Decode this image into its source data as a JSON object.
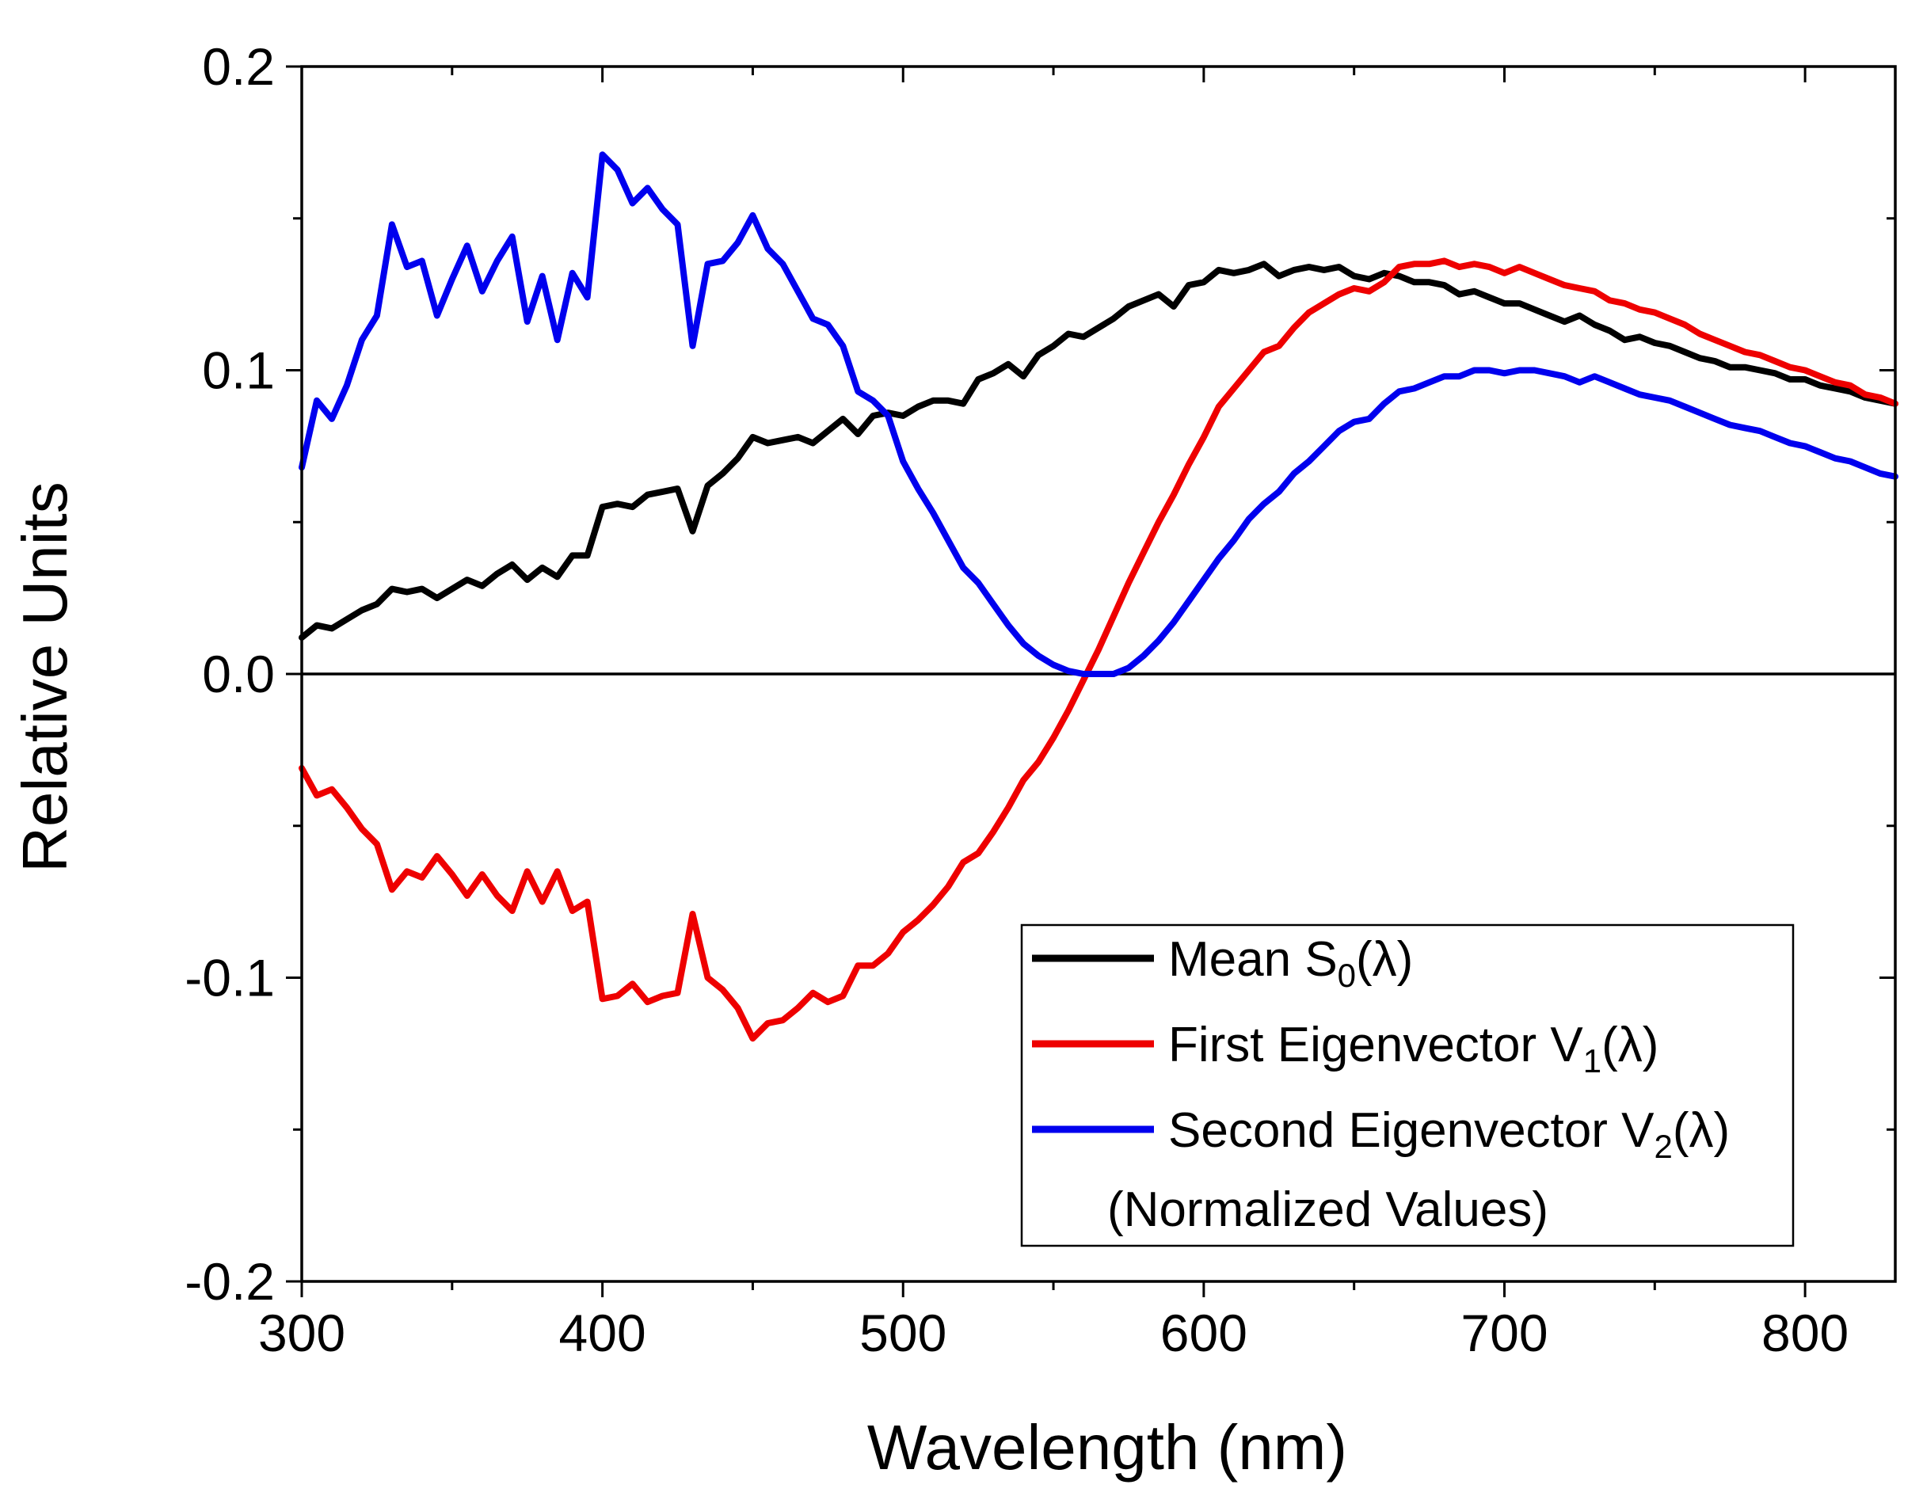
{
  "chart_data": {
    "type": "line",
    "title": "",
    "xlabel": "Wavelength (nm)",
    "ylabel": "Relative Units",
    "xlim": [
      300,
      830
    ],
    "ylim": [
      -0.2,
      0.2
    ],
    "x_major_ticks": [
      300,
      400,
      500,
      600,
      700,
      800
    ],
    "x_tick_labels": [
      "300",
      "400",
      "500",
      "600",
      "700",
      "800"
    ],
    "y_major_ticks": [
      -0.2,
      -0.1,
      0.0,
      0.1,
      0.2
    ],
    "y_tick_labels": [
      "-0.2",
      "-0.1",
      "0.0",
      "0.1",
      "0.2"
    ],
    "x_minor_step": 50,
    "y_minor_step": 0.05,
    "grid": false,
    "zero_line": true,
    "legend_position": "bottom-right",
    "legend_note": "(Normalized Values)",
    "series": [
      {
        "name": "Mean S0(λ)",
        "legend": {
          "prefix": "Mean S",
          "sub": "0",
          "suffix": "(λ)"
        },
        "color": "#000000",
        "x": [
          300,
          305,
          310,
          315,
          320,
          325,
          330,
          335,
          340,
          345,
          350,
          355,
          360,
          365,
          370,
          375,
          380,
          385,
          390,
          395,
          400,
          405,
          410,
          415,
          420,
          425,
          430,
          435,
          440,
          445,
          450,
          455,
          460,
          465,
          470,
          475,
          480,
          485,
          490,
          495,
          500,
          505,
          510,
          515,
          520,
          525,
          530,
          535,
          540,
          545,
          550,
          555,
          560,
          565,
          570,
          575,
          580,
          585,
          590,
          595,
          600,
          605,
          610,
          615,
          620,
          625,
          630,
          635,
          640,
          645,
          650,
          655,
          660,
          665,
          670,
          675,
          680,
          685,
          690,
          695,
          700,
          705,
          710,
          715,
          720,
          725,
          730,
          735,
          740,
          745,
          750,
          755,
          760,
          765,
          770,
          775,
          780,
          785,
          790,
          795,
          800,
          805,
          810,
          815,
          820,
          825,
          830
        ],
        "y": [
          0.012,
          0.016,
          0.015,
          0.018,
          0.021,
          0.023,
          0.028,
          0.027,
          0.028,
          0.025,
          0.028,
          0.031,
          0.029,
          0.033,
          0.036,
          0.031,
          0.035,
          0.032,
          0.039,
          0.039,
          0.055,
          0.056,
          0.055,
          0.059,
          0.06,
          0.061,
          0.047,
          0.062,
          0.066,
          0.071,
          0.078,
          0.076,
          0.077,
          0.078,
          0.076,
          0.08,
          0.084,
          0.079,
          0.085,
          0.086,
          0.085,
          0.088,
          0.09,
          0.09,
          0.089,
          0.097,
          0.099,
          0.102,
          0.098,
          0.105,
          0.108,
          0.112,
          0.111,
          0.114,
          0.117,
          0.121,
          0.123,
          0.125,
          0.121,
          0.128,
          0.129,
          0.133,
          0.132,
          0.133,
          0.135,
          0.131,
          0.133,
          0.134,
          0.133,
          0.134,
          0.131,
          0.13,
          0.132,
          0.131,
          0.129,
          0.129,
          0.128,
          0.125,
          0.126,
          0.124,
          0.122,
          0.122,
          0.12,
          0.118,
          0.116,
          0.118,
          0.115,
          0.113,
          0.11,
          0.111,
          0.109,
          0.108,
          0.106,
          0.104,
          0.103,
          0.101,
          0.101,
          0.1,
          0.099,
          0.097,
          0.097,
          0.095,
          0.094,
          0.093,
          0.091,
          0.09,
          0.089
        ]
      },
      {
        "name": "First Eigenvector V1(λ)",
        "legend": {
          "prefix": "First Eigenvector V",
          "sub": "1",
          "suffix": "(λ)"
        },
        "color": "#ee0000",
        "x": [
          300,
          305,
          310,
          315,
          320,
          325,
          330,
          335,
          340,
          345,
          350,
          355,
          360,
          365,
          370,
          375,
          380,
          385,
          390,
          395,
          400,
          405,
          410,
          415,
          420,
          425,
          430,
          435,
          440,
          445,
          450,
          455,
          460,
          465,
          470,
          475,
          480,
          485,
          490,
          495,
          500,
          505,
          510,
          515,
          520,
          525,
          530,
          535,
          540,
          545,
          550,
          555,
          560,
          565,
          570,
          575,
          580,
          585,
          590,
          595,
          600,
          605,
          610,
          615,
          620,
          625,
          630,
          635,
          640,
          645,
          650,
          655,
          660,
          665,
          670,
          675,
          680,
          685,
          690,
          695,
          700,
          705,
          710,
          715,
          720,
          725,
          730,
          735,
          740,
          745,
          750,
          755,
          760,
          765,
          770,
          775,
          780,
          785,
          790,
          795,
          800,
          805,
          810,
          815,
          820,
          825,
          830
        ],
        "y": [
          -0.031,
          -0.04,
          -0.038,
          -0.044,
          -0.051,
          -0.056,
          -0.071,
          -0.065,
          -0.067,
          -0.06,
          -0.066,
          -0.073,
          -0.066,
          -0.073,
          -0.078,
          -0.065,
          -0.075,
          -0.065,
          -0.078,
          -0.075,
          -0.107,
          -0.106,
          -0.102,
          -0.108,
          -0.106,
          -0.105,
          -0.079,
          -0.1,
          -0.104,
          -0.11,
          -0.12,
          -0.115,
          -0.114,
          -0.11,
          -0.105,
          -0.108,
          -0.106,
          -0.096,
          -0.096,
          -0.092,
          -0.085,
          -0.081,
          -0.076,
          -0.07,
          -0.062,
          -0.059,
          -0.052,
          -0.044,
          -0.035,
          -0.029,
          -0.021,
          -0.012,
          -0.002,
          0.008,
          0.019,
          0.03,
          0.04,
          0.05,
          0.059,
          0.069,
          0.078,
          0.088,
          0.094,
          0.1,
          0.106,
          0.108,
          0.114,
          0.119,
          0.122,
          0.125,
          0.127,
          0.126,
          0.129,
          0.134,
          0.135,
          0.135,
          0.136,
          0.134,
          0.135,
          0.134,
          0.132,
          0.134,
          0.132,
          0.13,
          0.128,
          0.127,
          0.126,
          0.123,
          0.122,
          0.12,
          0.119,
          0.117,
          0.115,
          0.112,
          0.11,
          0.108,
          0.106,
          0.105,
          0.103,
          0.101,
          0.1,
          0.098,
          0.096,
          0.095,
          0.092,
          0.091,
          0.089
        ]
      },
      {
        "name": "Second Eigenvector V2(λ)",
        "legend": {
          "prefix": "Second Eigenvector V",
          "sub": "2",
          "suffix": "(λ)"
        },
        "color": "#0000ee",
        "x": [
          300,
          305,
          310,
          315,
          320,
          325,
          330,
          335,
          340,
          345,
          350,
          355,
          360,
          365,
          370,
          375,
          380,
          385,
          390,
          395,
          400,
          405,
          410,
          415,
          420,
          425,
          430,
          435,
          440,
          445,
          450,
          455,
          460,
          465,
          470,
          475,
          480,
          485,
          490,
          495,
          500,
          505,
          510,
          515,
          520,
          525,
          530,
          535,
          540,
          545,
          550,
          555,
          560,
          565,
          570,
          575,
          580,
          585,
          590,
          595,
          600,
          605,
          610,
          615,
          620,
          625,
          630,
          635,
          640,
          645,
          650,
          655,
          660,
          665,
          670,
          675,
          680,
          685,
          690,
          695,
          700,
          705,
          710,
          715,
          720,
          725,
          730,
          735,
          740,
          745,
          750,
          755,
          760,
          765,
          770,
          775,
          780,
          785,
          790,
          795,
          800,
          805,
          810,
          815,
          820,
          825,
          830
        ],
        "y": [
          0.068,
          0.09,
          0.084,
          0.095,
          0.11,
          0.118,
          0.148,
          0.134,
          0.136,
          0.118,
          0.13,
          0.141,
          0.126,
          0.136,
          0.144,
          0.116,
          0.131,
          0.11,
          0.132,
          0.124,
          0.171,
          0.166,
          0.155,
          0.16,
          0.153,
          0.148,
          0.108,
          0.135,
          0.136,
          0.142,
          0.151,
          0.14,
          0.135,
          0.126,
          0.117,
          0.115,
          0.108,
          0.093,
          0.09,
          0.085,
          0.07,
          0.061,
          0.053,
          0.044,
          0.035,
          0.03,
          0.023,
          0.016,
          0.01,
          0.006,
          0.003,
          0.001,
          0.0,
          0.0,
          0.0,
          0.002,
          0.006,
          0.011,
          0.017,
          0.024,
          0.031,
          0.038,
          0.044,
          0.051,
          0.056,
          0.06,
          0.066,
          0.07,
          0.075,
          0.08,
          0.083,
          0.084,
          0.089,
          0.093,
          0.094,
          0.096,
          0.098,
          0.098,
          0.1,
          0.1,
          0.099,
          0.1,
          0.1,
          0.099,
          0.098,
          0.096,
          0.098,
          0.096,
          0.094,
          0.092,
          0.091,
          0.09,
          0.088,
          0.086,
          0.084,
          0.082,
          0.081,
          0.08,
          0.078,
          0.076,
          0.075,
          0.073,
          0.071,
          0.07,
          0.068,
          0.066,
          0.065
        ]
      }
    ]
  }
}
